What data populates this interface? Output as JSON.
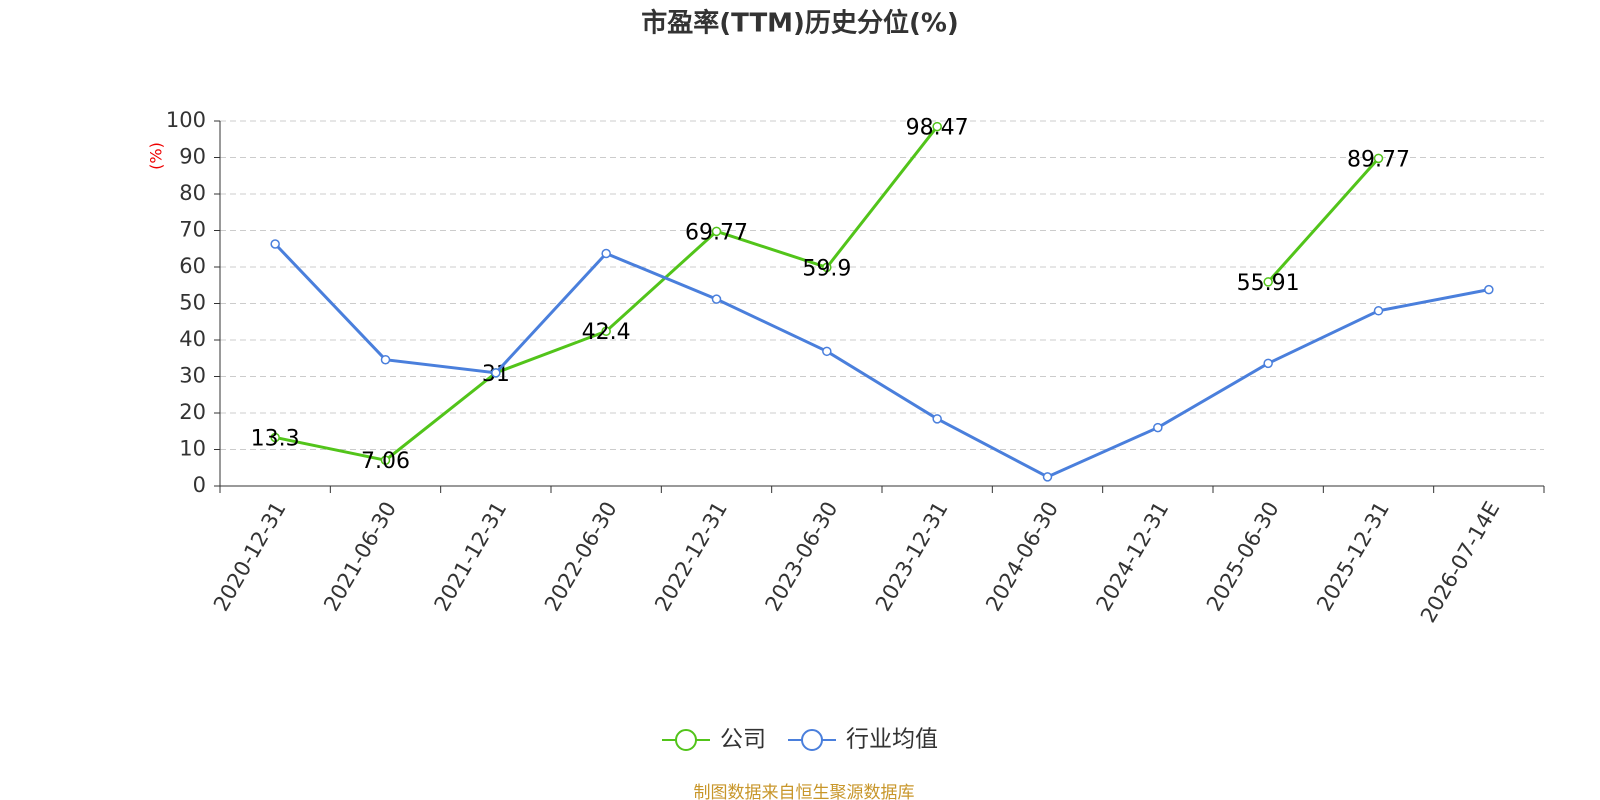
{
  "chart_data": {
    "type": "line",
    "title": "市盈率(TTM)历史分位(%)",
    "y_label": "(%)",
    "source": "制图数据来自恒生聚源数据库",
    "categories": [
      "2020-12-31",
      "2021-06-30",
      "2021-12-31",
      "2022-06-30",
      "2022-12-31",
      "2023-06-30",
      "2023-12-31",
      "2024-06-30",
      "2024-12-31",
      "2025-06-30",
      "2025-12-31",
      "2026-07-14E"
    ],
    "series": [
      {
        "name": "公司",
        "color": "#52c41a",
        "show_labels": true,
        "values": [
          13.3,
          7.06,
          31,
          42.4,
          69.77,
          59.9,
          98.47,
          null,
          null,
          55.91,
          89.77,
          null
        ]
      },
      {
        "name": "行业均值",
        "color": "#4a7fdc",
        "show_labels": false,
        "values": [
          66.3,
          34.6,
          31,
          63.7,
          51.2,
          36.9,
          18.4,
          2.5,
          16,
          33.6,
          48,
          53.8
        ]
      }
    ],
    "ylim": [
      0,
      100
    ],
    "yticks": [
      0,
      10,
      20,
      30,
      40,
      50,
      60,
      70,
      80,
      90,
      100
    ],
    "grid": true
  }
}
